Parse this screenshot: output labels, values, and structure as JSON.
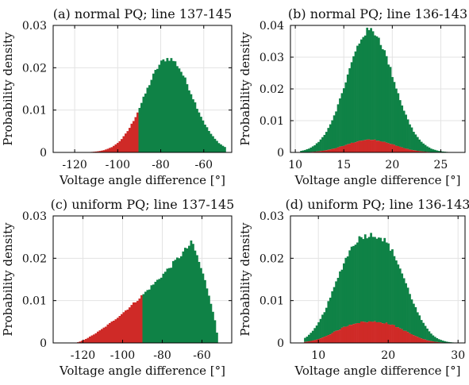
{
  "colors": {
    "safe": "#0f8246",
    "violation": "#cf2a27"
  },
  "chart_data": [
    {
      "type": "bar",
      "title": "(a) normal PQ; line 137-145",
      "xlabel": "Voltage angle difference [°]",
      "ylabel": "Probability density",
      "xlim": [
        -130,
        -47
      ],
      "ylim": [
        0,
        0.03
      ],
      "xticks": [
        -120,
        -100,
        -80,
        -60
      ],
      "yticks": [
        0,
        0.01,
        0.02,
        0.03
      ],
      "grid": true,
      "distribution": {
        "shape": "normal",
        "mean": -76.5,
        "sd": 11.0,
        "peak": 0.0222,
        "support": [
          -122,
          -50
        ]
      },
      "violation_region": {
        "side": "below",
        "threshold": -90
      },
      "series": [
        {
          "color_key": "safe",
          "region": "x >= -90"
        },
        {
          "color_key": "violation",
          "region": "x < -90"
        }
      ]
    },
    {
      "type": "bar",
      "title": "(b) normal PQ; line 136-143",
      "xlabel": "Voltage angle difference [°]",
      "ylabel": "Probability density",
      "xlim": [
        9.5,
        27.5
      ],
      "ylim": [
        0,
        0.04
      ],
      "xticks": [
        10,
        15,
        20,
        25
      ],
      "yticks": [
        0,
        0.01,
        0.02,
        0.03,
        0.04
      ],
      "grid": true,
      "distribution": {
        "shape": "normal",
        "mean": 17.7,
        "sd": 2.4,
        "peak": 0.0385,
        "support": [
          10.5,
          27
        ]
      },
      "violation_fraction": {
        "shape": "normal",
        "mean": 17.7,
        "sd": 2.4,
        "peak": 0.004,
        "support": [
          10.5,
          27
        ]
      },
      "series": [
        {
          "color_key": "safe",
          "region": "total"
        },
        {
          "color_key": "violation",
          "region": "stacked bottom"
        }
      ]
    },
    {
      "type": "bar",
      "title": "(c) uniform PQ; line 137-145",
      "xlabel": "Voltage angle difference [°]",
      "ylabel": "Probability density",
      "xlim": [
        -135,
        -45
      ],
      "ylim": [
        0,
        0.03
      ],
      "xticks": [
        -120,
        -100,
        -80,
        -60
      ],
      "yticks": [
        0,
        0.01,
        0.02,
        0.03
      ],
      "grid": true,
      "distribution": {
        "shape": "skewed",
        "start": -124,
        "peak_x": -65,
        "end": -52,
        "peak": 0.0238
      },
      "violation_region": {
        "side": "below",
        "threshold": -90
      },
      "series": [
        {
          "color_key": "safe",
          "region": "x >= -90"
        },
        {
          "color_key": "violation",
          "region": "x < -90"
        }
      ]
    },
    {
      "type": "bar",
      "title": "(d) uniform PQ; line 136-143",
      "xlabel": "Voltage angle difference [°]",
      "ylabel": "Probability density",
      "xlim": [
        6,
        31
      ],
      "ylim": [
        0,
        0.03
      ],
      "xticks": [
        10,
        20,
        30
      ],
      "yticks": [
        0,
        0.01,
        0.02,
        0.03
      ],
      "grid": true,
      "distribution": {
        "shape": "flat-top",
        "mean": 17.5,
        "sd": 4.7,
        "peak": 0.0255,
        "support": [
          8,
          29.5
        ]
      },
      "violation_fraction": {
        "shape": "flat-top",
        "mean": 17.5,
        "sd": 4.7,
        "peak": 0.005,
        "support": [
          8,
          29.5
        ]
      },
      "series": [
        {
          "color_key": "safe",
          "region": "total"
        },
        {
          "color_key": "violation",
          "region": "stacked bottom"
        }
      ]
    }
  ]
}
